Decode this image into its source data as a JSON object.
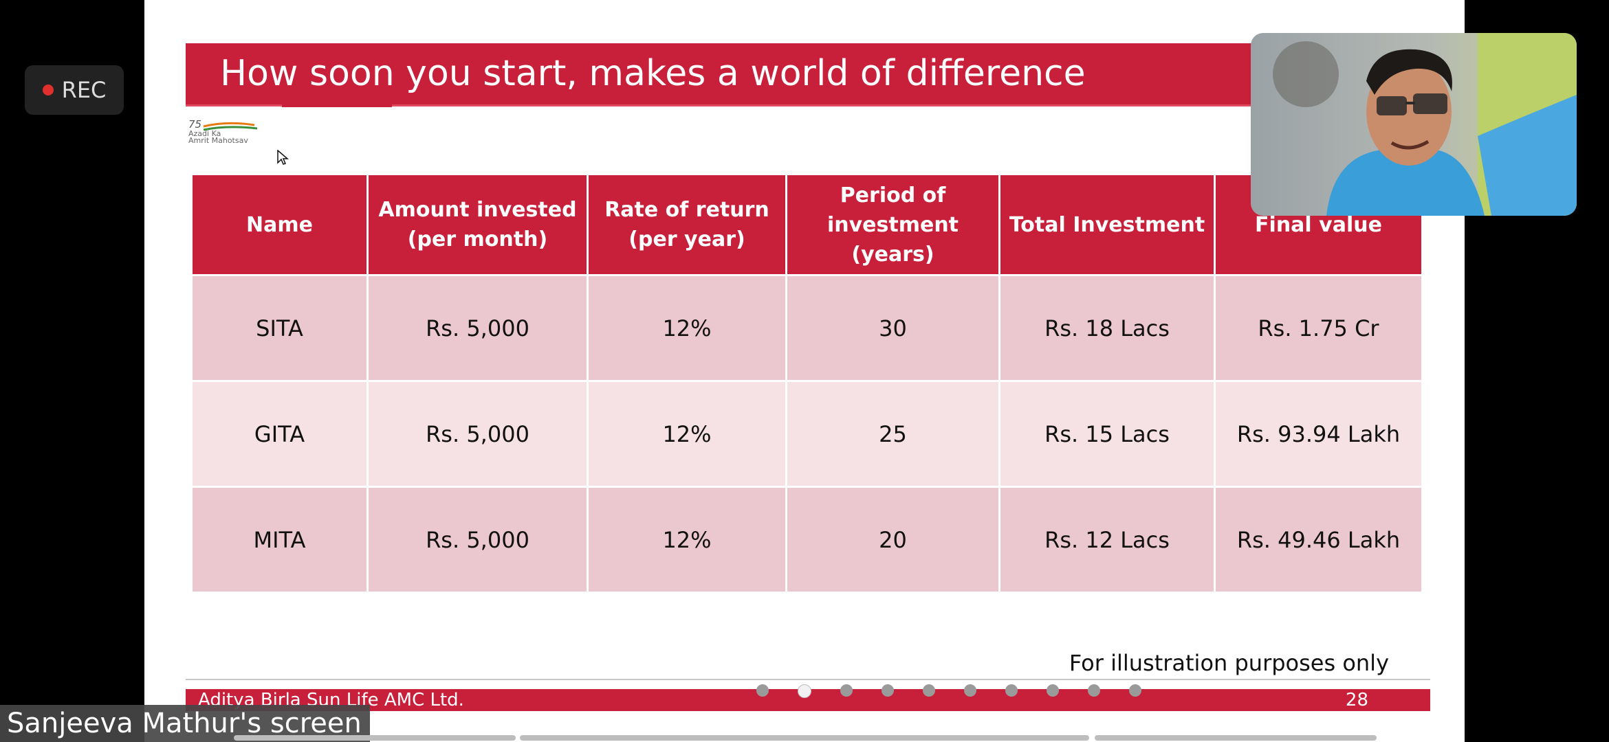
{
  "recording": {
    "label": "REC"
  },
  "slide": {
    "title": "How soon you start, makes a world of difference",
    "table": {
      "headers": [
        "Name",
        "Amount invested (per month)",
        "Rate of return (per year)",
        "Period of investment (years)",
        "Total Investment",
        "Final value"
      ],
      "rows": [
        [
          "SITA",
          "Rs. 5,000",
          "12%",
          "30",
          "Rs. 18 Lacs",
          "Rs. 1.75 Cr"
        ],
        [
          "GITA",
          "Rs. 5,000",
          "12%",
          "25",
          "Rs. 15 Lacs",
          "Rs. 93.94 Lakh"
        ],
        [
          "MITA",
          "Rs. 5,000",
          "12%",
          "20",
          "Rs. 12 Lacs",
          "Rs. 49.46 Lakh"
        ]
      ]
    },
    "footnote": "For illustration purposes only",
    "footer_company": "Aditya Birla Sun Life AMC Ltd.",
    "page_number": "28",
    "logo_text": [
      "75",
      "Azadi Ka",
      "Amrit Mahotsav"
    ]
  },
  "nav": {
    "slide_count": 10,
    "active_index": 1
  },
  "share_label": "Sanjeeva Mathur's screen",
  "colors": {
    "brand_red": "#c8203a",
    "row_dark": "#ebc8cf",
    "row_light": "#f6e1e4",
    "rec_red": "#e0302d"
  }
}
